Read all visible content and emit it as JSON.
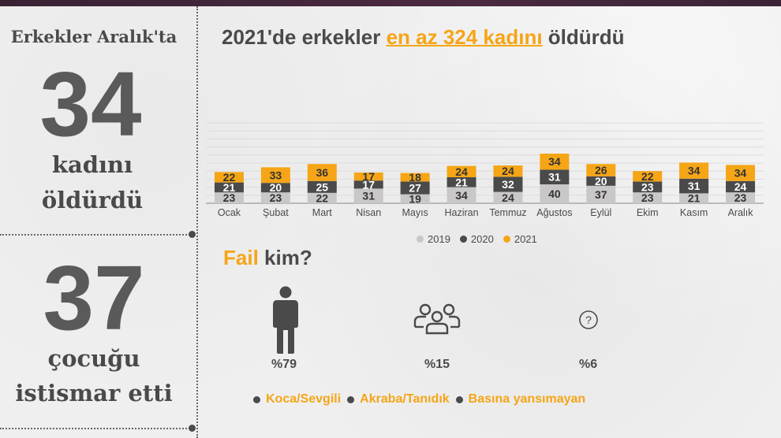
{
  "left": {
    "label_top": "Erkekler Aralık'ta",
    "number_1": "34",
    "word_1a": "kadını",
    "word_1b": "öldürdü",
    "number_2": "37",
    "word_2a": "çocuğu",
    "word_2b": "istismar etti"
  },
  "chart_title": {
    "prefix": "2021'de erkekler ",
    "highlight": "en az 324 kadını",
    "suffix": " öldürdü"
  },
  "colors": {
    "s2019": "#c9c7c7",
    "s2020": "#4a4a4a",
    "s2021": "#f5a516",
    "text": "#4a4a4a",
    "accent": "#f5a516"
  },
  "chart_data": {
    "type": "bar",
    "stacked": true,
    "categories": [
      "Ocak",
      "Şubat",
      "Mart",
      "Nisan",
      "Mayıs",
      "Haziran",
      "Temmuz",
      "Ağustos",
      "Eylül",
      "Ekim",
      "Kasım",
      "Aralık"
    ],
    "series": [
      {
        "name": "2019",
        "values": [
          23,
          23,
          22,
          31,
          19,
          34,
          24,
          40,
          37,
          23,
          21,
          23
        ]
      },
      {
        "name": "2020",
        "values": [
          21,
          20,
          25,
          17,
          27,
          21,
          32,
          31,
          20,
          23,
          31,
          24
        ]
      },
      {
        "name": "2021",
        "values": [
          22,
          33,
          36,
          17,
          18,
          24,
          24,
          34,
          26,
          22,
          34,
          34
        ]
      }
    ],
    "legend": [
      "2019",
      "2020",
      "2021"
    ],
    "legend_position": "bottom",
    "grid": true
  },
  "fail": {
    "title_highlight": "Fail",
    "title_rest": " kim?",
    "items": [
      {
        "icon": "person-icon",
        "pct": "%79",
        "label": "Koca/Sevgili"
      },
      {
        "icon": "group-icon",
        "pct": "%15",
        "label": "Akraba/Tanıdık"
      },
      {
        "icon": "question-icon",
        "pct": "%6",
        "label": "Basına yansımayan"
      }
    ]
  }
}
